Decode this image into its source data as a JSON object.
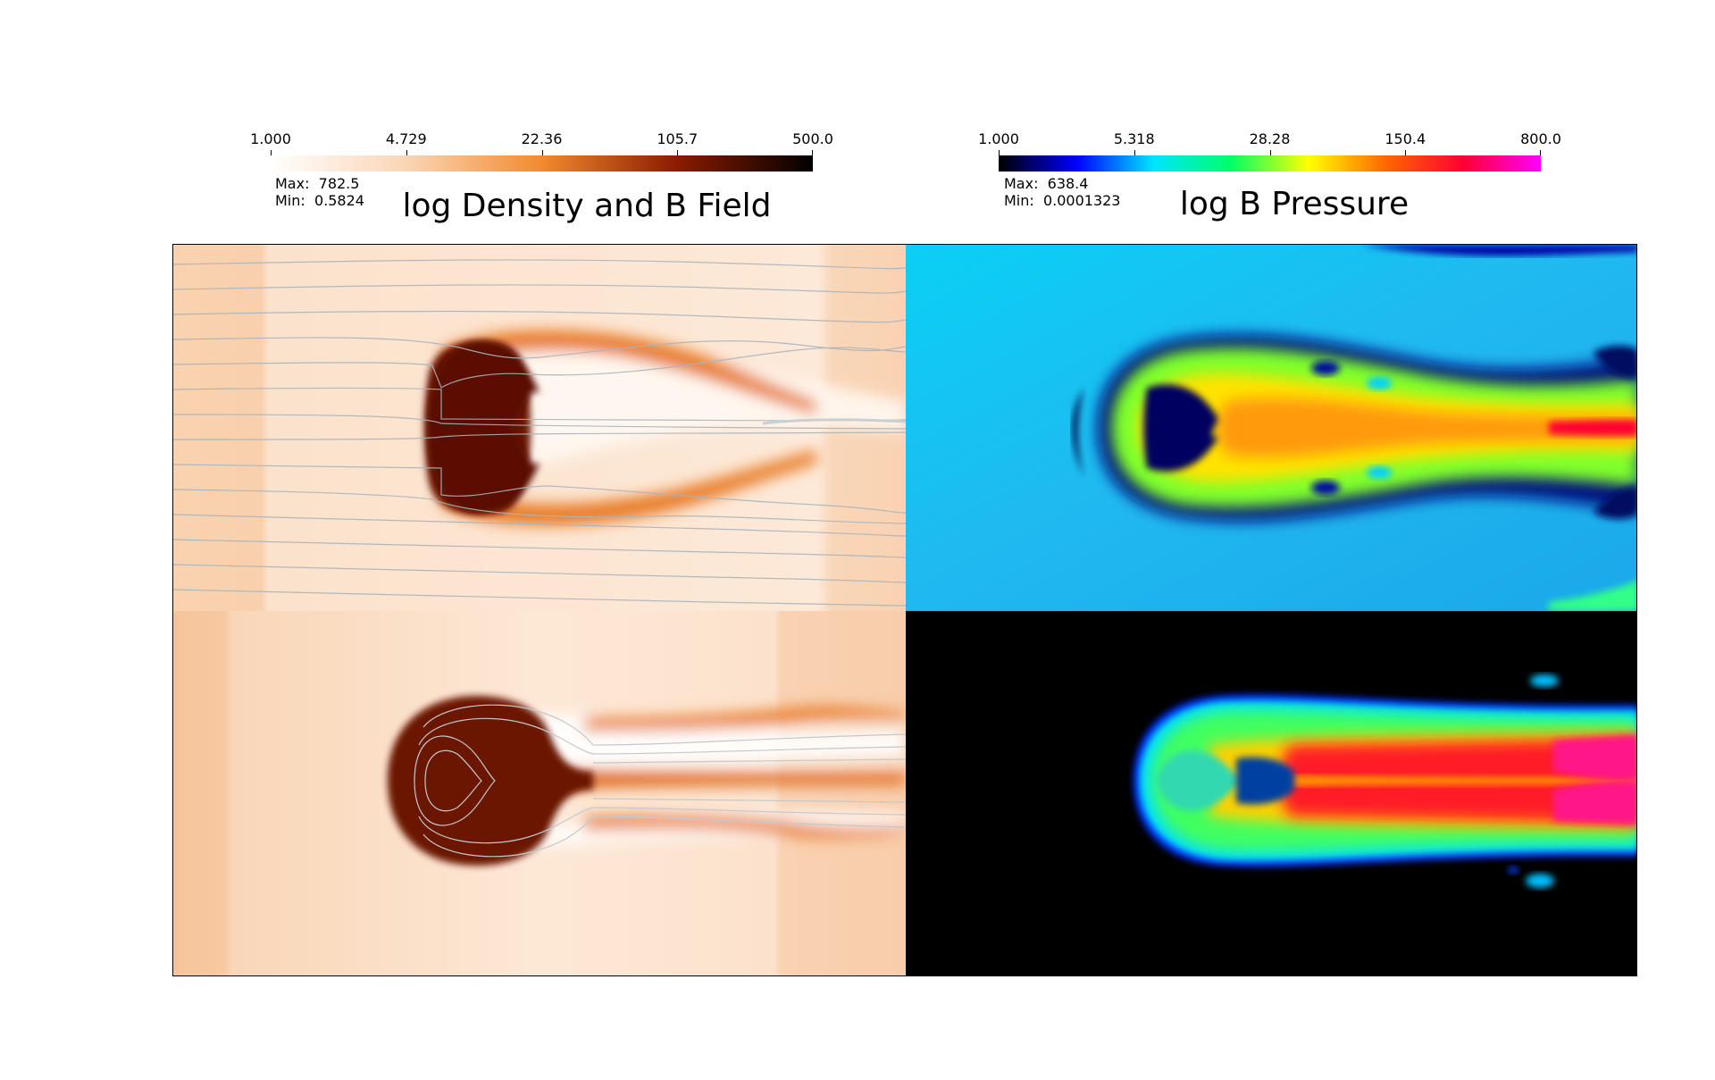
{
  "colorbars": [
    {
      "ticks": [
        "1.000",
        "4.729",
        "22.36",
        "105.7",
        "500.0"
      ],
      "colormap": [
        "#ffffff",
        "#fbd5b5",
        "#f28a2e",
        "#8b1a00",
        "#000000"
      ],
      "max_label": "Max:",
      "max_value": "782.5",
      "min_label": "Min:",
      "min_value": "0.5824",
      "title": "log Density and B Field"
    },
    {
      "ticks": [
        "1.000",
        "5.318",
        "28.28",
        "150.4",
        "800.0"
      ],
      "colormap": [
        "#000000",
        "#0000ff",
        "#00e5ff",
        "#00ff66",
        "#ffff00",
        "#ff6600",
        "#ff0033",
        "#ff00ff"
      ],
      "max_label": "Max:",
      "max_value": "638.4",
      "min_label": "Min:",
      "min_value": "0.0001323",
      "title": "log B Pressure"
    }
  ]
}
